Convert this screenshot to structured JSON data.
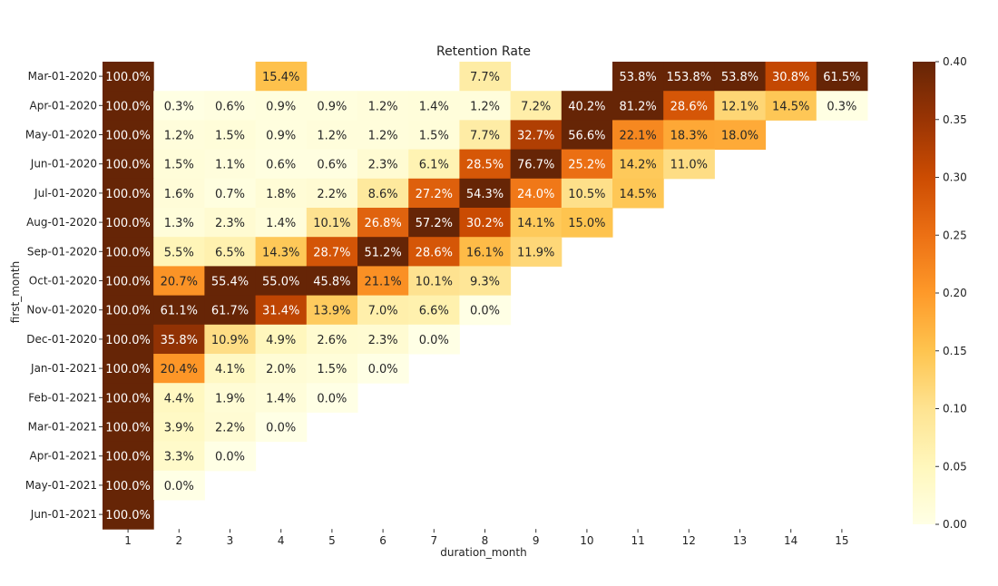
{
  "chart_data": {
    "type": "heatmap",
    "title": "Retention Rate",
    "xlabel": "duration_month",
    "ylabel": "first_month",
    "x": [
      "1",
      "2",
      "3",
      "4",
      "5",
      "6",
      "7",
      "8",
      "9",
      "10",
      "11",
      "12",
      "13",
      "14",
      "15"
    ],
    "y": [
      "Mar-01-2020",
      "Apr-01-2020",
      "May-01-2020",
      "Jun-01-2020",
      "Jul-01-2020",
      "Aug-01-2020",
      "Sep-01-2020",
      "Oct-01-2020",
      "Nov-01-2020",
      "Dec-01-2020",
      "Jan-01-2021",
      "Feb-01-2021",
      "Mar-01-2021",
      "Apr-01-2021",
      "May-01-2021",
      "Jun-01-2021"
    ],
    "values": [
      [
        1.0,
        null,
        null,
        0.154,
        null,
        null,
        null,
        0.077,
        null,
        null,
        0.538,
        1.538,
        0.538,
        0.308,
        0.615
      ],
      [
        1.0,
        0.003,
        0.006,
        0.009,
        0.009,
        0.012,
        0.014,
        0.012,
        0.072,
        0.402,
        0.812,
        0.286,
        0.121,
        0.145,
        0.003
      ],
      [
        1.0,
        0.012,
        0.015,
        0.009,
        0.012,
        0.012,
        0.015,
        0.077,
        0.327,
        0.566,
        0.221,
        0.183,
        0.18,
        null,
        null
      ],
      [
        1.0,
        0.015,
        0.011,
        0.006,
        0.006,
        0.023,
        0.061,
        0.285,
        0.767,
        0.252,
        0.142,
        0.11,
        null,
        null,
        null
      ],
      [
        1.0,
        0.016,
        0.007,
        0.018,
        0.022,
        0.086,
        0.272,
        0.543,
        0.24,
        0.105,
        0.145,
        null,
        null,
        null,
        null
      ],
      [
        1.0,
        0.013,
        0.023,
        0.014,
        0.101,
        0.268,
        0.572,
        0.302,
        0.141,
        0.15,
        null,
        null,
        null,
        null,
        null
      ],
      [
        1.0,
        0.055,
        0.065,
        0.143,
        0.287,
        0.512,
        0.286,
        0.161,
        0.119,
        null,
        null,
        null,
        null,
        null,
        null
      ],
      [
        1.0,
        0.207,
        0.554,
        0.55,
        0.458,
        0.211,
        0.101,
        0.093,
        null,
        null,
        null,
        null,
        null,
        null,
        null
      ],
      [
        1.0,
        0.611,
        0.617,
        0.314,
        0.139,
        0.07,
        0.066,
        0.0,
        null,
        null,
        null,
        null,
        null,
        null,
        null
      ],
      [
        1.0,
        0.358,
        0.109,
        0.049,
        0.026,
        0.023,
        0.0,
        null,
        null,
        null,
        null,
        null,
        null,
        null,
        null
      ],
      [
        1.0,
        0.204,
        0.041,
        0.02,
        0.015,
        0.0,
        null,
        null,
        null,
        null,
        null,
        null,
        null,
        null,
        null
      ],
      [
        1.0,
        0.044,
        0.019,
        0.014,
        0.0,
        null,
        null,
        null,
        null,
        null,
        null,
        null,
        null,
        null,
        null
      ],
      [
        1.0,
        0.039,
        0.022,
        0.0,
        null,
        null,
        null,
        null,
        null,
        null,
        null,
        null,
        null,
        null,
        null
      ],
      [
        1.0,
        0.033,
        0.0,
        null,
        null,
        null,
        null,
        null,
        null,
        null,
        null,
        null,
        null,
        null,
        null
      ],
      [
        1.0,
        0.0,
        null,
        null,
        null,
        null,
        null,
        null,
        null,
        null,
        null,
        null,
        null,
        null,
        null
      ],
      [
        1.0,
        null,
        null,
        null,
        null,
        null,
        null,
        null,
        null,
        null,
        null,
        null,
        null,
        null,
        null
      ]
    ],
    "colorbar": {
      "min": 0.0,
      "max": 0.4,
      "ticks": [
        "0.00",
        "0.05",
        "0.10",
        "0.15",
        "0.20",
        "0.25",
        "0.30",
        "0.35",
        "0.40"
      ]
    },
    "colormap": [
      "#ffffe5",
      "#fff7bc",
      "#fee391",
      "#fec44f",
      "#fe9929",
      "#ec7014",
      "#cc4c02",
      "#993404",
      "#662506"
    ],
    "grid": false,
    "legend": "colorbar-right"
  }
}
